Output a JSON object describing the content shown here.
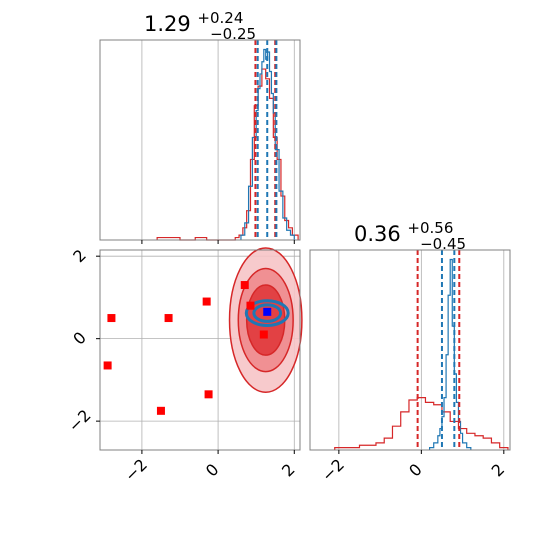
{
  "chart_data": {
    "type": "scatter",
    "description_free": true,
    "panels": [
      {
        "id": "top-left",
        "kind": "histogram",
        "title": {
          "main": "1.29",
          "sup": "+0.24",
          "sub": "−0.25"
        },
        "xlim": [
          -3.1,
          2.15
        ],
        "gridlines_x": [
          -2,
          0,
          2
        ],
        "x_ticks_labeled": false,
        "series": [
          {
            "name": "red",
            "color": "#d62728",
            "bins": [
              [
                -1.6,
                -1.0,
                0.01
              ],
              [
                -0.6,
                -0.3,
                0.01
              ],
              [
                0.45,
                0.55,
                0.01
              ],
              [
                0.55,
                0.65,
                0.02
              ],
              [
                0.65,
                0.75,
                0.05
              ],
              [
                0.75,
                0.85,
                0.12
              ],
              [
                0.85,
                0.95,
                0.33
              ],
              [
                0.95,
                1.05,
                0.55
              ],
              [
                1.05,
                1.15,
                0.63
              ],
              [
                1.15,
                1.25,
                0.7
              ],
              [
                1.25,
                1.35,
                0.66
              ],
              [
                1.35,
                1.45,
                0.58
              ],
              [
                1.45,
                1.55,
                0.42
              ],
              [
                1.55,
                1.65,
                0.33
              ],
              [
                1.65,
                1.75,
                0.18
              ],
              [
                1.75,
                1.85,
                0.08
              ],
              [
                1.85,
                1.95,
                0.05
              ],
              [
                1.95,
                2.1,
                0.02
              ]
            ]
          },
          {
            "name": "blue",
            "color": "#1f77b4",
            "bins": [
              [
                0.6,
                0.7,
                0.02
              ],
              [
                0.7,
                0.8,
                0.07
              ],
              [
                0.8,
                0.9,
                0.22
              ],
              [
                0.9,
                1.0,
                0.42
              ],
              [
                1.0,
                1.05,
                0.53
              ],
              [
                1.05,
                1.1,
                0.62
              ],
              [
                1.1,
                1.15,
                0.68
              ],
              [
                1.15,
                1.2,
                0.73
              ],
              [
                1.2,
                1.25,
                0.78
              ],
              [
                1.25,
                1.3,
                0.74
              ],
              [
                1.3,
                1.35,
                0.77
              ],
              [
                1.35,
                1.4,
                0.69
              ],
              [
                1.4,
                1.45,
                0.6
              ],
              [
                1.45,
                1.5,
                0.52
              ],
              [
                1.5,
                1.6,
                0.37
              ],
              [
                1.6,
                1.7,
                0.2
              ],
              [
                1.7,
                1.8,
                0.09
              ],
              [
                1.8,
                1.9,
                0.04
              ],
              [
                1.9,
                2.0,
                0.02
              ]
            ]
          }
        ],
        "quantile_lines": [
          {
            "x": 0.98,
            "color": "#d62728"
          },
          {
            "x": 1.5,
            "color": "#d62728"
          },
          {
            "x": 1.04,
            "color": "#1f77b4"
          },
          {
            "x": 1.29,
            "color": "#1f77b4"
          },
          {
            "x": 1.53,
            "color": "#1f77b4"
          }
        ]
      },
      {
        "id": "bottom-left",
        "kind": "scatter",
        "xlim": [
          -3.1,
          2.15
        ],
        "ylim": [
          -2.7,
          2.15
        ],
        "x_ticks": [
          -2,
          0,
          2
        ],
        "y_ticks": [
          -2,
          0,
          2
        ],
        "red_markers": [
          {
            "x": -2.8,
            "y": 0.5
          },
          {
            "x": -1.3,
            "y": 0.5
          },
          {
            "x": -0.3,
            "y": 0.9
          },
          {
            "x": -2.9,
            "y": -0.65
          },
          {
            "x": -1.5,
            "y": -1.75
          },
          {
            "x": -0.25,
            "y": -1.35
          },
          {
            "x": 0.7,
            "y": 1.3
          },
          {
            "x": 0.85,
            "y": 0.8
          },
          {
            "x": 1.2,
            "y": 0.1
          }
        ],
        "blue_marker": {
          "x": 1.29,
          "y": 0.65
        },
        "red_contours": [
          {
            "cx": 1.25,
            "cy": 0.45,
            "rx": 0.95,
            "ry": 1.75
          },
          {
            "cx": 1.25,
            "cy": 0.45,
            "rx": 0.72,
            "ry": 1.25
          },
          {
            "cx": 1.25,
            "cy": 0.45,
            "rx": 0.5,
            "ry": 0.85
          }
        ],
        "blue_contours": [
          {
            "cx": 1.29,
            "cy": 0.62,
            "rx": 0.55,
            "ry": 0.3
          },
          {
            "cx": 1.29,
            "cy": 0.62,
            "rx": 0.35,
            "ry": 0.2
          }
        ]
      },
      {
        "id": "bottom-right",
        "kind": "histogram",
        "title": {
          "main": "0.36",
          "sup": "+0.56",
          "sub": "−0.45"
        },
        "xlim": [
          -2.7,
          2.15
        ],
        "x_ticks": [
          -2,
          0,
          2
        ],
        "series": [
          {
            "name": "red",
            "color": "#d62728",
            "bins": [
              [
                -2.1,
                -1.9,
                0.01
              ],
              [
                -1.9,
                -1.5,
                0.01
              ],
              [
                -1.5,
                -1.1,
                0.02
              ],
              [
                -1.1,
                -0.9,
                0.03
              ],
              [
                -0.9,
                -0.7,
                0.05
              ],
              [
                -0.7,
                -0.5,
                0.1
              ],
              [
                -0.5,
                -0.3,
                0.16
              ],
              [
                -0.3,
                -0.1,
                0.21
              ],
              [
                -0.1,
                0.1,
                0.22
              ],
              [
                0.1,
                0.3,
                0.2
              ],
              [
                0.3,
                0.5,
                0.19
              ],
              [
                0.5,
                0.7,
                0.16
              ],
              [
                0.7,
                0.9,
                0.12
              ],
              [
                0.9,
                1.1,
                0.09
              ],
              [
                1.1,
                1.3,
                0.07
              ],
              [
                1.3,
                1.5,
                0.06
              ],
              [
                1.5,
                1.7,
                0.05
              ],
              [
                1.7,
                1.9,
                0.03
              ],
              [
                1.9,
                2.1,
                0.01
              ]
            ]
          },
          {
            "name": "blue",
            "color": "#1f77b4",
            "bins": [
              [
                0.2,
                0.3,
                0.01
              ],
              [
                0.3,
                0.4,
                0.03
              ],
              [
                0.4,
                0.45,
                0.06
              ],
              [
                0.45,
                0.5,
                0.09
              ],
              [
                0.5,
                0.55,
                0.14
              ],
              [
                0.55,
                0.6,
                0.22
              ],
              [
                0.6,
                0.65,
                0.4
              ],
              [
                0.65,
                0.7,
                0.65
              ],
              [
                0.7,
                0.75,
                0.8
              ],
              [
                0.75,
                0.8,
                0.52
              ],
              [
                0.8,
                0.85,
                0.32
              ],
              [
                0.85,
                0.9,
                0.2
              ],
              [
                0.9,
                0.95,
                0.12
              ],
              [
                0.95,
                1.0,
                0.07
              ],
              [
                1.0,
                1.1,
                0.03
              ],
              [
                1.1,
                1.2,
                0.01
              ]
            ]
          }
        ],
        "quantile_lines": [
          {
            "x": -0.09,
            "color": "#d62728"
          },
          {
            "x": 0.92,
            "color": "#d62728"
          },
          {
            "x": 0.5,
            "color": "#1f77b4"
          },
          {
            "x": 0.8,
            "color": "#1f77b4"
          }
        ]
      }
    ],
    "colors": {
      "red": "#d62728",
      "blue": "#1f77b4",
      "red_marker": "#ff0000",
      "blue_marker": "#0000ff",
      "grid": "#b0b0b0",
      "frame": "#808080"
    }
  }
}
